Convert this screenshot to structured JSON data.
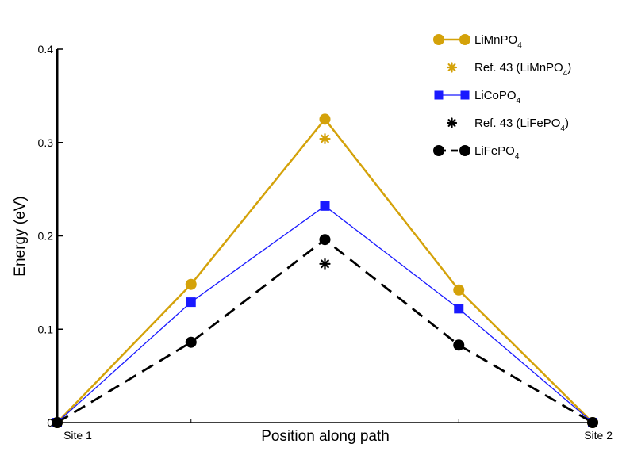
{
  "chart_data": {
    "type": "line",
    "title": "",
    "xlabel": "Position along path",
    "ylabel": "Energy (eV)",
    "xlim": [
      0,
      4
    ],
    "ylim": [
      0,
      0.4
    ],
    "x": [
      0,
      1,
      2,
      3,
      4
    ],
    "x_tick_labels": [
      {
        "x": 0,
        "label": "Site 1"
      },
      {
        "x": 4,
        "label": "Site 2"
      }
    ],
    "y_ticks": [
      0,
      0.1,
      0.2,
      0.3,
      0.4
    ],
    "y_tick_labels": [
      "0",
      "0.1",
      "0.2",
      "0.3",
      "0.4"
    ],
    "legend_position": "top-right",
    "series": [
      {
        "name": "LiMnPO4",
        "legend_main": "LiMnPO",
        "legend_sub": "4",
        "legend_tail": "",
        "values": [
          0,
          0.148,
          0.325,
          0.142,
          0
        ],
        "color": "#d4a20a",
        "marker": "circle",
        "line": "solid",
        "width": 2.5
      },
      {
        "name": "Ref. 43 (LiMnPO4)",
        "legend_main": "Ref. 43 (LiMnPO",
        "legend_sub": "4",
        "legend_tail": ")",
        "points": [
          {
            "x": 2,
            "y": 0.304
          }
        ],
        "color": "#d4a20a",
        "marker": "asterisk",
        "line": "none"
      },
      {
        "name": "LiCoPO4",
        "legend_main": "LiCoPO",
        "legend_sub": "4",
        "legend_tail": "",
        "values": [
          0,
          0.129,
          0.232,
          0.122,
          0
        ],
        "color": "#1a1aff",
        "marker": "square",
        "line": "solid",
        "width": 1.3
      },
      {
        "name": "Ref. 43 (LiFePO4)",
        "legend_main": "Ref. 43 (LiFePO",
        "legend_sub": "4",
        "legend_tail": ")",
        "points": [
          {
            "x": 2,
            "y": 0.17
          }
        ],
        "color": "#000000",
        "marker": "asterisk",
        "line": "none"
      },
      {
        "name": "LiFePO4",
        "legend_main": "LiFePO",
        "legend_sub": "4",
        "legend_tail": "",
        "values": [
          0,
          0.086,
          0.196,
          0.083,
          0
        ],
        "color": "#000000",
        "marker": "circle",
        "line": "dashed",
        "width": 2.8
      }
    ]
  }
}
